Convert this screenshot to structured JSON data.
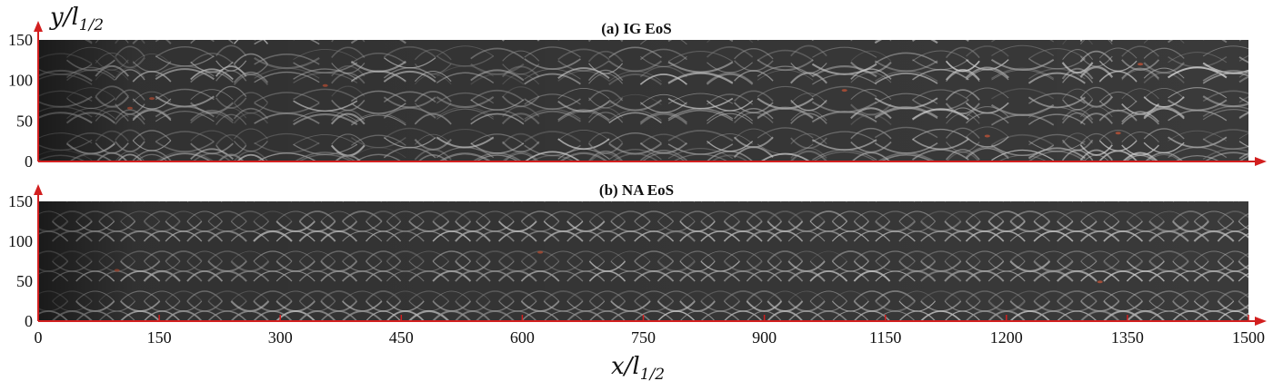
{
  "chart_data": [
    {
      "type": "heatmap",
      "title": "(a) IG EoS",
      "xlim": [
        0,
        1500
      ],
      "ylim": [
        0,
        150
      ],
      "yticks": [
        "0",
        "50",
        "100",
        "150"
      ],
      "ylabel": "y/l",
      "ylabel_sub": "1/2",
      "pattern": "irregular"
    },
    {
      "type": "heatmap",
      "title": "(b) NA EoS",
      "xlim": [
        0,
        1500
      ],
      "ylim": [
        0,
        150
      ],
      "yticks": [
        "0",
        "50",
        "100",
        "150"
      ],
      "xticks": [
        "0",
        "150",
        "300",
        "450",
        "600",
        "750",
        "900",
        "1150",
        "1200",
        "1350",
        "1500"
      ],
      "xlabel": "x/l",
      "xlabel_sub": "1/2",
      "pattern": "regular"
    }
  ],
  "colors": {
    "axis": "#d21f1f",
    "field_dark": "#262626",
    "field_light": "#d9d9d9"
  }
}
